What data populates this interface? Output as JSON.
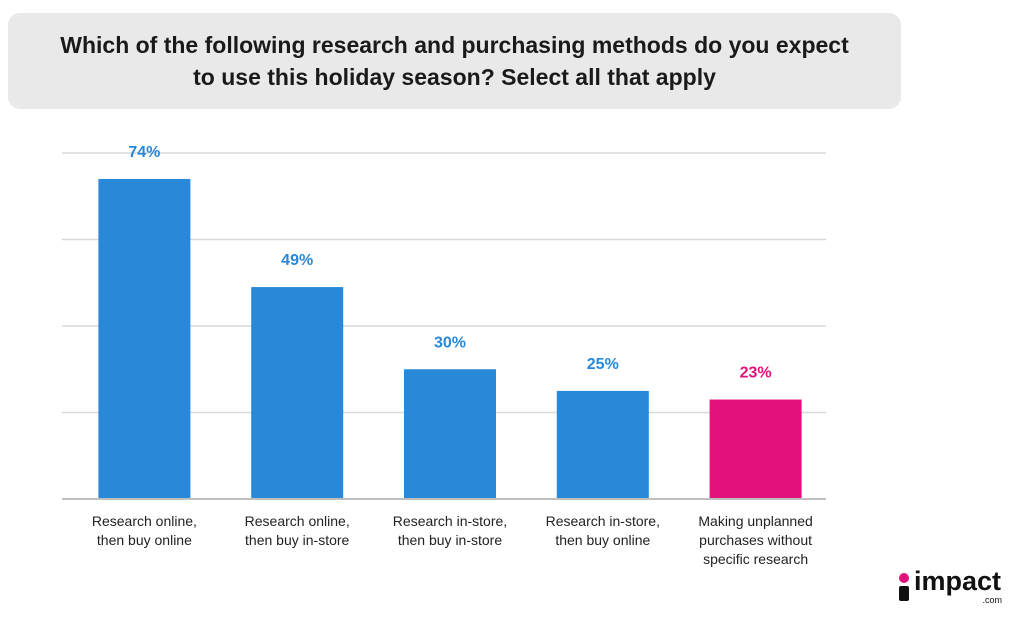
{
  "title": {
    "line1": "Which of the following research and purchasing methods do you expect",
    "line2": "to use this holiday season? Select all that apply"
  },
  "colors": {
    "primary_bar": "#2a88d8",
    "highlight_bar": "#e3117b",
    "gridline": "#d9d9d9",
    "axis": "#bfbfbf"
  },
  "logo": {
    "text": "impact",
    "sub": ".com",
    "mark_colors": [
      "#e3117b",
      "#111111"
    ]
  },
  "chart_data": {
    "type": "bar",
    "title": "Which of the following research and purchasing methods do you expect to use this holiday season? Select all that apply",
    "categories": [
      "Research online,\nthen buy online",
      "Research online,\nthen buy in-store",
      "Research in-store,\nthen buy in-store",
      "Research in-store,\nthen buy online",
      "Making unplanned\npurchases without\nspecific research"
    ],
    "values": [
      74,
      49,
      30,
      25,
      23
    ],
    "data_labels": [
      "74%",
      "49%",
      "30%",
      "25%",
      "23%"
    ],
    "highlight_index": 4,
    "ylim": [
      0,
      80
    ],
    "gridlines": [
      20,
      40,
      60,
      80
    ],
    "grid": true,
    "xlabel": "",
    "ylabel": ""
  }
}
